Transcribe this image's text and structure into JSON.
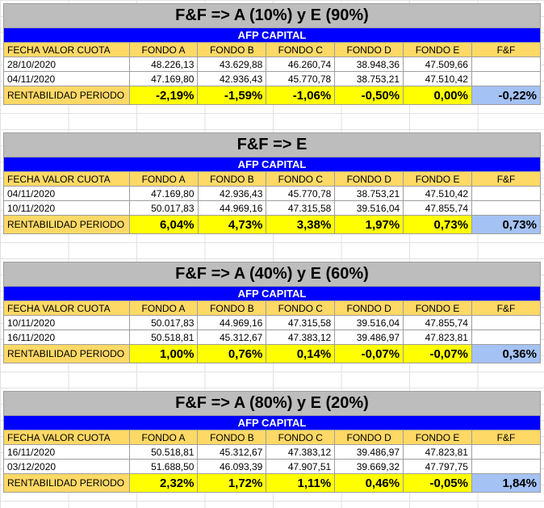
{
  "tables": [
    {
      "title": "F&F => A (10%) y E (90%)",
      "afp": "AFP CAPITAL",
      "headers": [
        "FECHA VALOR CUOTA",
        "FONDO A",
        "FONDO B",
        "FONDO C",
        "FONDO D",
        "FONDO E",
        "F&F"
      ],
      "rows": [
        [
          "28/10/2020",
          "48.226,13",
          "43.629,88",
          "46.260,74",
          "38.948,36",
          "47.509,66",
          ""
        ],
        [
          "04/11/2020",
          "47.169,80",
          "42.936,43",
          "45.770,78",
          "38.753,21",
          "47.510,42",
          ""
        ]
      ],
      "rent": [
        "RENTABILIDAD PERIODO",
        "-2,19%",
        "-1,59%",
        "-1,06%",
        "-0,50%",
        "0,00%",
        "-0,22%"
      ]
    },
    {
      "title": "F&F => E",
      "afp": "AFP CAPITAL",
      "headers": [
        "FECHA VALOR CUOTA",
        "FONDO A",
        "FONDO B",
        "FONDO C",
        "FONDO D",
        "FONDO E",
        "F&F"
      ],
      "rows": [
        [
          "04/11/2020",
          "47.169,80",
          "42.936,43",
          "45.770,78",
          "38.753,21",
          "47.510,42",
          ""
        ],
        [
          "10/11/2020",
          "50.017,83",
          "44.969,16",
          "47.315,58",
          "39.516,04",
          "47.855,74",
          ""
        ]
      ],
      "rent": [
        "RENTABILIDAD PERIODO",
        "6,04%",
        "4,73%",
        "3,38%",
        "1,97%",
        "0,73%",
        "0,73%"
      ]
    },
    {
      "title": "F&F => A (40%) y E (60%)",
      "afp": "AFP CAPITAL",
      "headers": [
        "FECHA VALOR CUOTA",
        "FONDO A",
        "FONDO B",
        "FONDO C",
        "FONDO D",
        "FONDO E",
        "F&F"
      ],
      "rows": [
        [
          "10/11/2020",
          "50.017,83",
          "44.969,16",
          "47.315,58",
          "39.516,04",
          "47.855,74",
          ""
        ],
        [
          "16/11/2020",
          "50.518,81",
          "45.312,67",
          "47.383,12",
          "39.486,97",
          "47.823,81",
          ""
        ]
      ],
      "rent": [
        "RENTABILIDAD PERIODO",
        "1,00%",
        "0,76%",
        "0,14%",
        "-0,07%",
        "-0,07%",
        "0,36%"
      ]
    },
    {
      "title": "F&F => A (80%) y E (20%)",
      "afp": "AFP CAPITAL",
      "headers": [
        "FECHA VALOR CUOTA",
        "FONDO A",
        "FONDO B",
        "FONDO C",
        "FONDO D",
        "FONDO E",
        "F&F"
      ],
      "rows": [
        [
          "16/11/2020",
          "50.518,81",
          "45.312,67",
          "47.383,12",
          "39.486,97",
          "47.823,81",
          ""
        ],
        [
          "03/12/2020",
          "51.688,50",
          "46.093,39",
          "47.907,51",
          "39.669,32",
          "47.797,75",
          ""
        ]
      ],
      "rent": [
        "RENTABILIDAD PERIODO",
        "2,32%",
        "1,72%",
        "1,11%",
        "0,46%",
        "-0,05%",
        "1,84%"
      ]
    }
  ]
}
